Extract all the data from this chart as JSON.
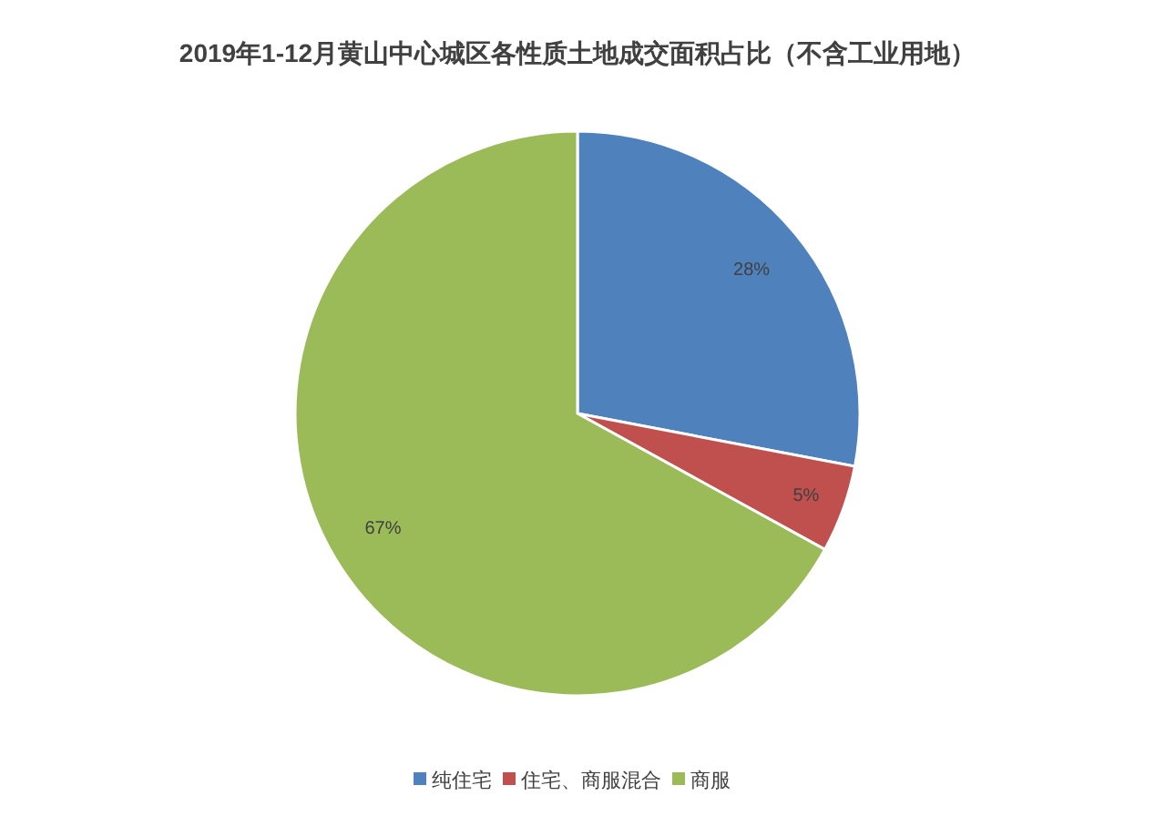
{
  "chart_data": {
    "type": "pie",
    "title": "2019年1-12月黄山中心城区各性质土地成交面积占比（不含工业用地）",
    "categories": [
      "纯住宅",
      "住宅、商服混合",
      "商服"
    ],
    "values": [
      28,
      5,
      67
    ],
    "colors": [
      "#4f81bd",
      "#c0504d",
      "#9bbb59"
    ],
    "value_labels": [
      "28%",
      "5%",
      "67%"
    ],
    "legend": "bottom"
  }
}
